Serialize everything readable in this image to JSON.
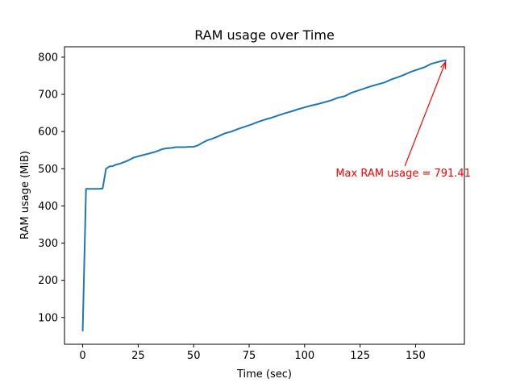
{
  "chart_data": {
    "type": "line",
    "title": "RAM usage over Time",
    "xlabel": "Time (sec)",
    "ylabel": "RAM usage (MiB)",
    "xlim": [
      -8.2,
      172
    ],
    "ylim": [
      28,
      828
    ],
    "xticks": [
      0,
      25,
      50,
      75,
      100,
      125,
      150
    ],
    "yticks": [
      100,
      200,
      300,
      400,
      500,
      600,
      700,
      800
    ],
    "grid": false,
    "series": [
      {
        "color": "#1f77b4",
        "x": [
          0,
          1.5,
          3,
          5,
          7,
          9,
          10.5,
          12,
          13.5,
          15,
          17,
          20,
          23,
          26,
          30,
          33,
          36,
          38,
          40,
          42,
          44,
          46,
          48,
          50,
          52,
          54,
          56,
          58,
          61,
          64,
          67,
          70,
          73,
          76,
          79,
          82,
          85,
          88,
          91,
          94,
          97,
          100,
          103,
          106,
          109,
          112,
          115,
          118,
          121,
          124,
          127,
          130,
          133,
          136,
          139,
          142,
          145,
          148,
          151,
          154,
          157,
          160,
          162,
          163.5
        ],
        "y": [
          65,
          446,
          446,
          446,
          446,
          447,
          500,
          506,
          507,
          511,
          514,
          521,
          530,
          535,
          541,
          546,
          553,
          555,
          556,
          558,
          558,
          558,
          559,
          559,
          563,
          570,
          576,
          580,
          587,
          595,
          600,
          607,
          613,
          619,
          626,
          632,
          637,
          643,
          649,
          654,
          660,
          665,
          670,
          674,
          679,
          684,
          691,
          695,
          704,
          710,
          716,
          722,
          727,
          732,
          740,
          746,
          753,
          761,
          767,
          773,
          782,
          787,
          790,
          791.41
        ]
      }
    ],
    "annotations": [
      {
        "text": "Max RAM usage = 791.41",
        "xy": [
          163.5,
          791.41
        ],
        "xytext": [
          114,
          490
        ],
        "color": "#ff0000",
        "arrow": true
      }
    ]
  }
}
